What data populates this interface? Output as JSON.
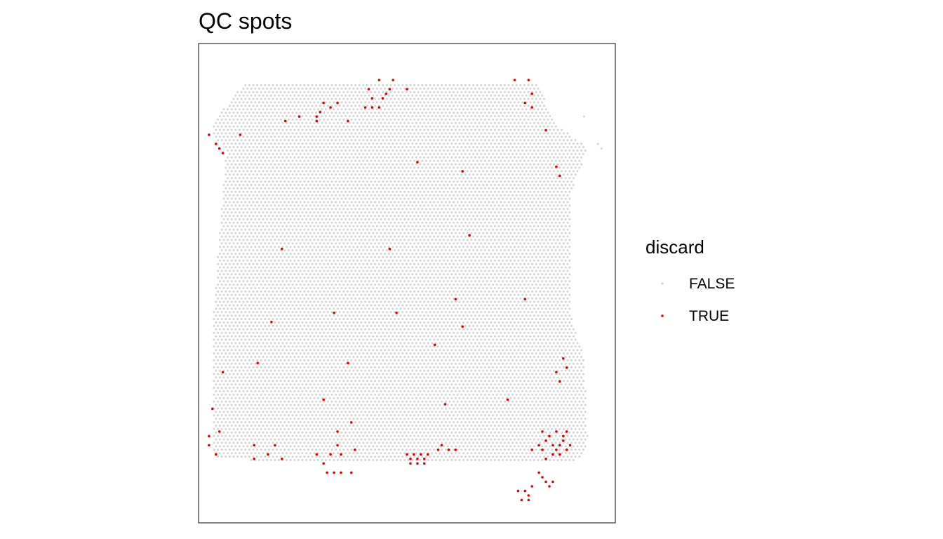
{
  "chart_data": {
    "type": "scatter",
    "title": "QC spots",
    "xlabel": "",
    "ylabel": "",
    "axes_shown": false,
    "grid": false,
    "legend": {
      "title": "discard",
      "placement": "right",
      "entries": [
        {
          "label": "FALSE",
          "color": "#D3D3D3"
        },
        {
          "label": "TRUE",
          "color": "#E00000"
        }
      ]
    },
    "tissue_outline": [
      [
        0.13,
        0.96
      ],
      [
        0.98,
        0.96
      ],
      [
        1.02,
        0.88
      ],
      [
        1.12,
        0.82
      ],
      [
        1.07,
        0.72
      ],
      [
        1.07,
        0.46
      ],
      [
        1.11,
        0.36
      ],
      [
        1.12,
        0.18
      ],
      [
        1.1,
        0.14
      ],
      [
        0.98,
        0.12
      ],
      [
        0.46,
        0.13
      ],
      [
        0.05,
        0.14
      ],
      [
        0.01,
        0.18
      ],
      [
        0.04,
        0.43
      ],
      [
        0.08,
        0.82
      ],
      [
        0.02,
        0.86
      ]
    ],
    "series": [
      {
        "name": "FALSE",
        "color": "#D3D3D3",
        "note_fill": "hexagonal grid of spots filling the tissue outline"
      },
      {
        "name": "TRUE",
        "color": "#E00000",
        "points": [
          [
            0.52,
            0.97
          ],
          [
            0.56,
            0.97
          ],
          [
            0.54,
            0.94
          ],
          [
            0.91,
            0.97
          ],
          [
            0.95,
            0.97
          ],
          [
            0.96,
            0.94
          ],
          [
            0.94,
            0.92
          ],
          [
            0.96,
            0.91
          ],
          [
            0.6,
            0.95
          ],
          [
            0.55,
            0.95
          ],
          [
            0.49,
            0.95
          ],
          [
            0.5,
            0.93
          ],
          [
            0.53,
            0.93
          ],
          [
            0.5,
            0.91
          ],
          [
            0.52,
            0.91
          ],
          [
            0.48,
            0.91
          ],
          [
            0.36,
            0.92
          ],
          [
            0.4,
            0.92
          ],
          [
            0.38,
            0.91
          ],
          [
            0.35,
            0.9
          ],
          [
            0.34,
            0.89
          ],
          [
            0.29,
            0.89
          ],
          [
            0.25,
            0.88
          ],
          [
            0.34,
            0.88
          ],
          [
            0.43,
            0.88
          ],
          [
            0.03,
            0.85
          ],
          [
            0.05,
            0.83
          ],
          [
            0.06,
            0.82
          ],
          [
            0.07,
            0.81
          ],
          [
            0.12,
            0.85
          ],
          [
            1.0,
            0.86
          ],
          [
            0.63,
            0.79
          ],
          [
            0.76,
            0.77
          ],
          [
            1.03,
            0.78
          ],
          [
            1.04,
            0.76
          ],
          [
            0.78,
            0.63
          ],
          [
            0.24,
            0.6
          ],
          [
            0.55,
            0.6
          ],
          [
            0.94,
            0.49
          ],
          [
            0.74,
            0.49
          ],
          [
            0.57,
            0.46
          ],
          [
            0.21,
            0.44
          ],
          [
            0.39,
            0.46
          ],
          [
            0.76,
            0.43
          ],
          [
            0.68,
            0.39
          ],
          [
            0.17,
            0.35
          ],
          [
            0.43,
            0.35
          ],
          [
            1.05,
            0.36
          ],
          [
            0.07,
            0.33
          ],
          [
            1.03,
            0.33
          ],
          [
            1.06,
            0.34
          ],
          [
            1.04,
            0.31
          ],
          [
            0.04,
            0.25
          ],
          [
            0.36,
            0.27
          ],
          [
            0.71,
            0.26
          ],
          [
            0.89,
            0.27
          ],
          [
            0.06,
            0.2
          ],
          [
            0.4,
            0.2
          ],
          [
            0.44,
            0.22
          ],
          [
            0.03,
            0.19
          ],
          [
            0.03,
            0.17
          ],
          [
            0.05,
            0.15
          ],
          [
            0.16,
            0.17
          ],
          [
            0.22,
            0.17
          ],
          [
            0.4,
            0.17
          ],
          [
            0.45,
            0.16
          ],
          [
            0.16,
            0.14
          ],
          [
            0.2,
            0.15
          ],
          [
            0.24,
            0.14
          ],
          [
            0.34,
            0.15
          ],
          [
            0.38,
            0.15
          ],
          [
            0.41,
            0.15
          ],
          [
            0.36,
            0.13
          ],
          [
            0.37,
            0.11
          ],
          [
            0.39,
            0.11
          ],
          [
            0.41,
            0.11
          ],
          [
            0.44,
            0.11
          ],
          [
            0.6,
            0.15
          ],
          [
            0.61,
            0.14
          ],
          [
            0.62,
            0.15
          ],
          [
            0.63,
            0.14
          ],
          [
            0.64,
            0.15
          ],
          [
            0.65,
            0.14
          ],
          [
            0.66,
            0.15
          ],
          [
            0.61,
            0.13
          ],
          [
            0.63,
            0.13
          ],
          [
            0.65,
            0.13
          ],
          [
            0.69,
            0.16
          ],
          [
            0.7,
            0.17
          ],
          [
            0.72,
            0.16
          ],
          [
            0.74,
            0.16
          ],
          [
            0.96,
            0.16
          ],
          [
            0.98,
            0.17
          ],
          [
            0.99,
            0.16
          ],
          [
            1.0,
            0.18
          ],
          [
            1.01,
            0.19
          ],
          [
            1.02,
            0.17
          ],
          [
            1.03,
            0.16
          ],
          [
            1.04,
            0.17
          ],
          [
            1.05,
            0.18
          ],
          [
            1.06,
            0.16
          ],
          [
            1.07,
            0.17
          ],
          [
            1.02,
            0.15
          ],
          [
            1.04,
            0.15
          ],
          [
            1.0,
            0.14
          ],
          [
            1.05,
            0.19
          ],
          [
            1.06,
            0.2
          ],
          [
            1.03,
            0.2
          ],
          [
            0.99,
            0.2
          ],
          [
            0.98,
            0.11
          ],
          [
            0.99,
            0.1
          ],
          [
            1.0,
            0.09
          ],
          [
            1.01,
            0.08
          ],
          [
            1.02,
            0.09
          ],
          [
            0.96,
            0.08
          ],
          [
            0.94,
            0.07
          ],
          [
            0.92,
            0.07
          ],
          [
            0.95,
            0.06
          ],
          [
            0.93,
            0.05
          ],
          [
            0.95,
            0.05
          ]
        ]
      }
    ]
  }
}
